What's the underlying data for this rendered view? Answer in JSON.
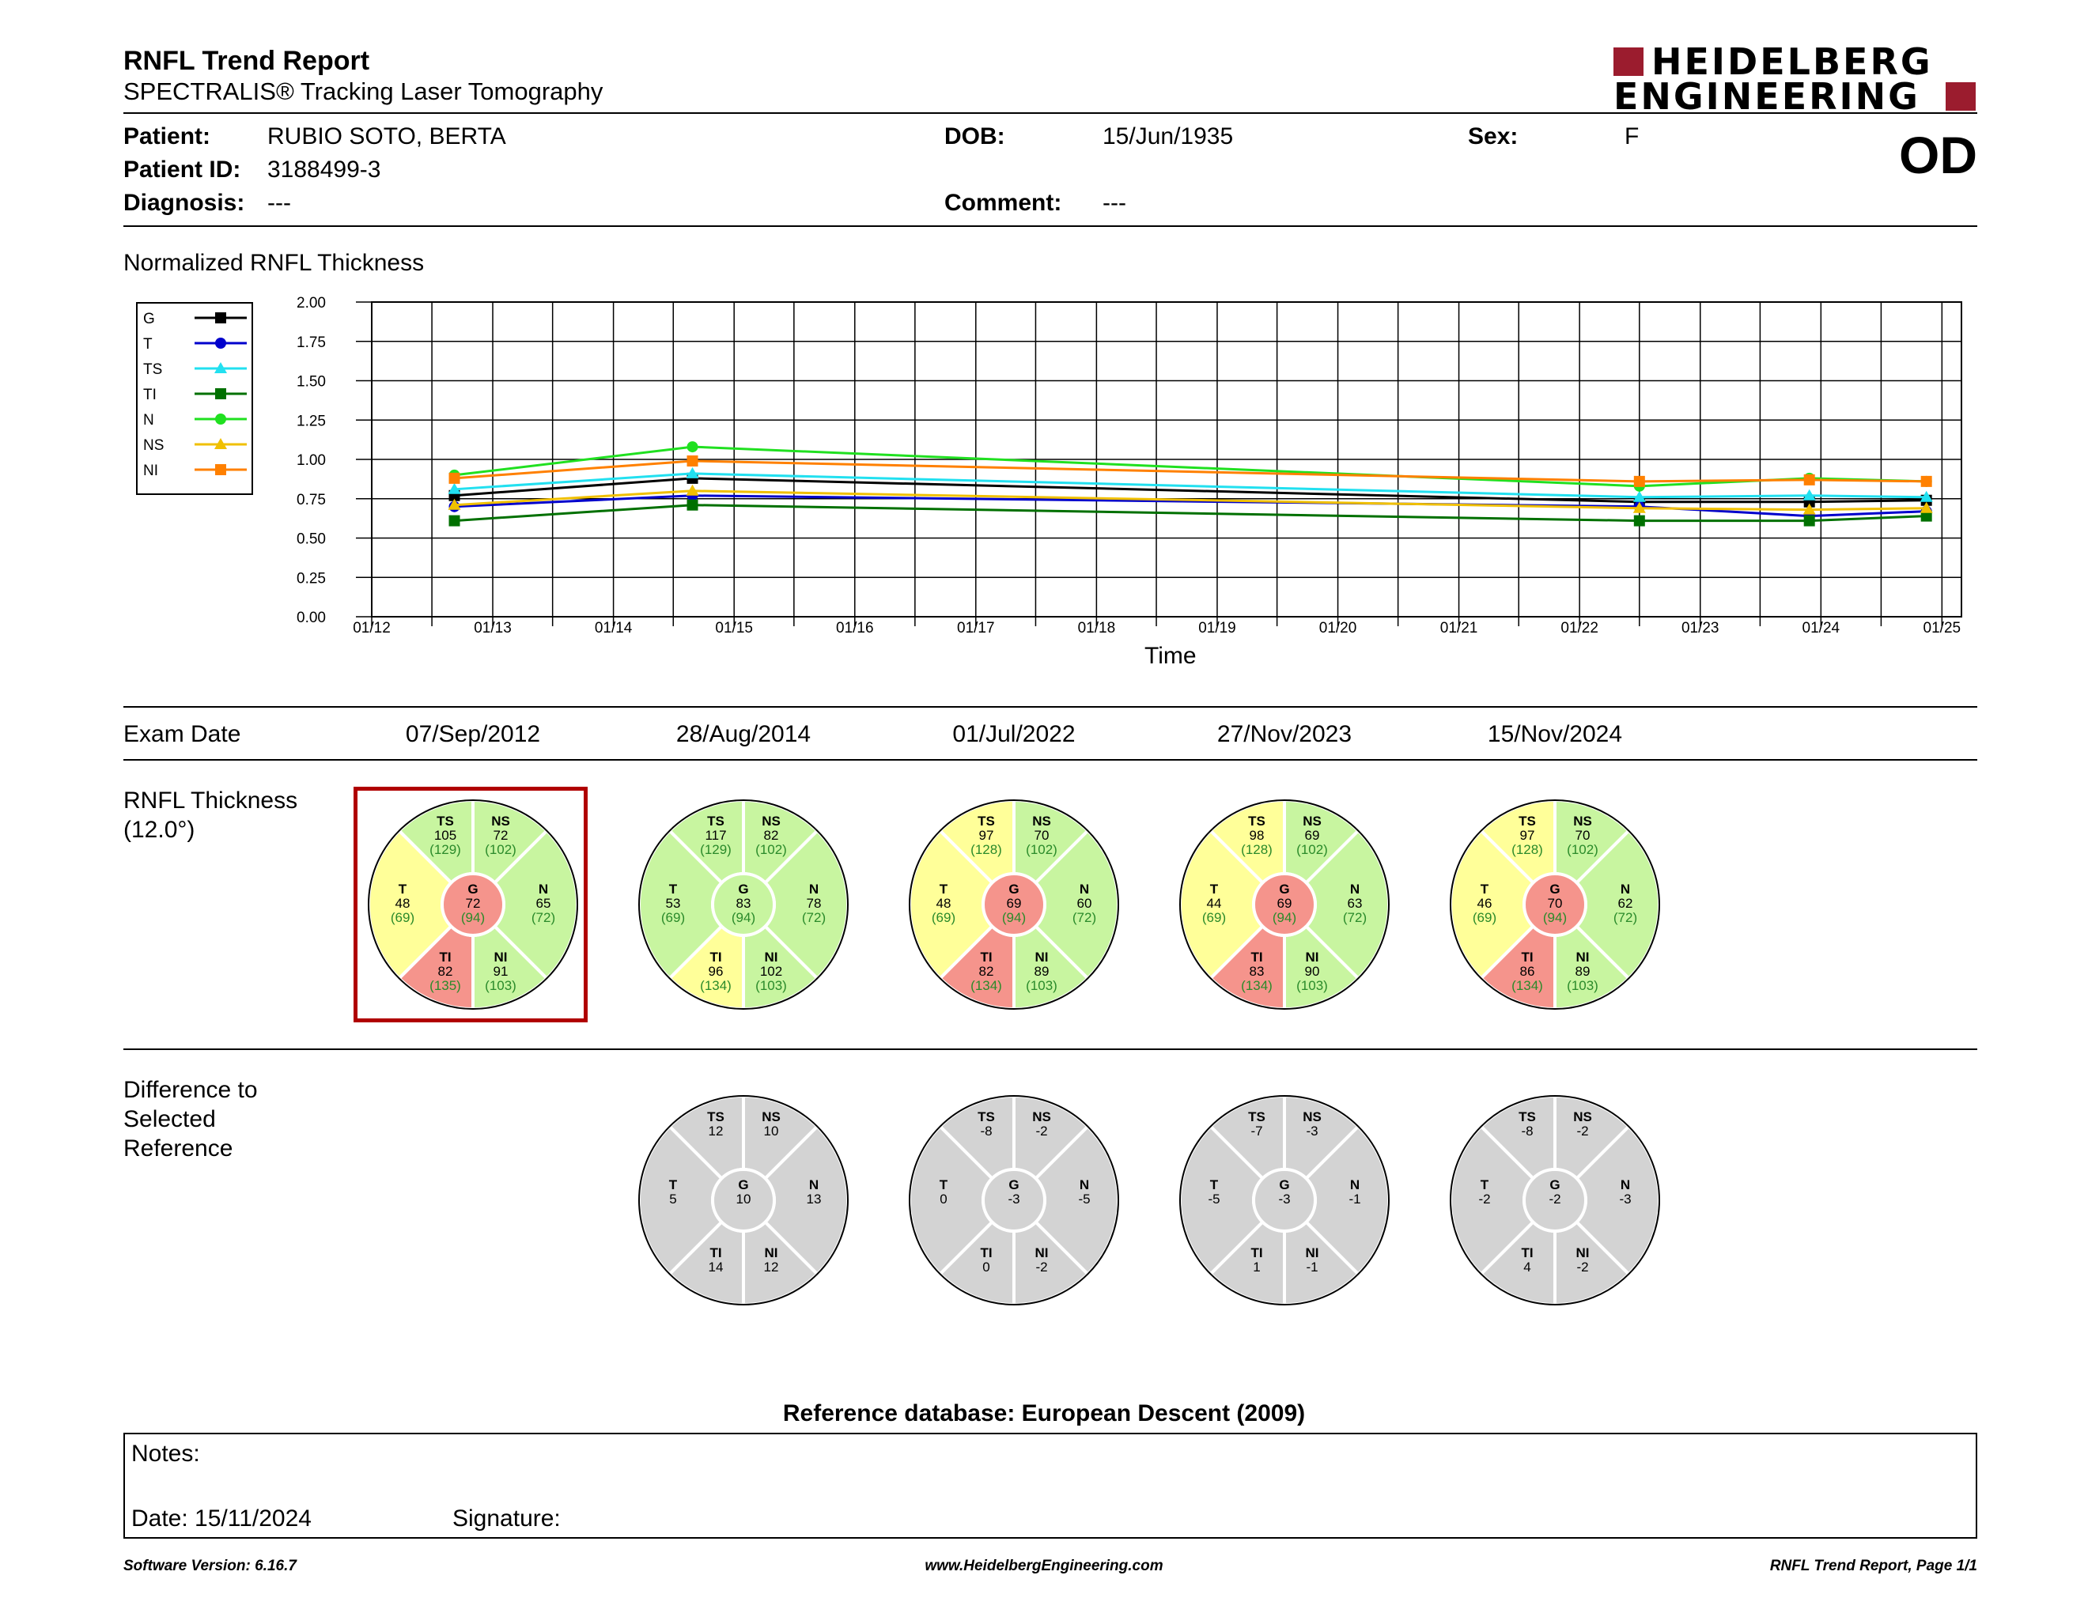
{
  "header": {
    "title": "RNFL Trend Report",
    "subtitle": "SPECTRALIS® Tracking Laser Tomography",
    "logo_line1": "HEIDELBERG",
    "logo_line2": "ENGINEERING",
    "eye": "OD"
  },
  "patient": {
    "patient_label": "Patient:",
    "patient_value": "RUBIO SOTO, BERTA",
    "id_label": "Patient ID:",
    "id_value": "3188499-3",
    "diagnosis_label": "Diagnosis:",
    "diagnosis_value": "---",
    "dob_label": "DOB:",
    "dob_value": "15/Jun/1935",
    "comment_label": "Comment:",
    "comment_value": "---",
    "sex_label": "Sex:",
    "sex_value": "F"
  },
  "chart_data": {
    "type": "line",
    "title": "Normalized RNFL Thickness",
    "xlabel": "Time",
    "ylabel": "",
    "ylim": [
      0,
      2
    ],
    "yticks": [
      "0.00",
      "0.25",
      "0.50",
      "0.75",
      "1.00",
      "1.25",
      "1.50",
      "1.75",
      "2.00"
    ],
    "xticks": [
      "01/12",
      "01/13",
      "01/14",
      "01/15",
      "01/16",
      "01/17",
      "01/18",
      "01/19",
      "01/20",
      "01/21",
      "01/22",
      "01/23",
      "01/24",
      "01/25"
    ],
    "x": [
      "07/Sep/2012",
      "28/Aug/2014",
      "01/Jul/2022",
      "27/Nov/2023",
      "15/Nov/2024"
    ],
    "grid": true,
    "legend_position": "left",
    "series": [
      {
        "name": "G",
        "color": "#000000",
        "marker": "square",
        "values": [
          0.77,
          0.88,
          0.73,
          0.73,
          0.74
        ]
      },
      {
        "name": "T",
        "color": "#0000cc",
        "marker": "circle",
        "values": [
          0.7,
          0.77,
          0.7,
          0.64,
          0.67
        ]
      },
      {
        "name": "TS",
        "color": "#22e0f0",
        "marker": "triangle",
        "values": [
          0.81,
          0.91,
          0.76,
          0.77,
          0.76
        ]
      },
      {
        "name": "TI",
        "color": "#007000",
        "marker": "square",
        "values": [
          0.61,
          0.71,
          0.61,
          0.61,
          0.64
        ]
      },
      {
        "name": "N",
        "color": "#20e020",
        "marker": "circle",
        "values": [
          0.9,
          1.08,
          0.83,
          0.88,
          0.86
        ]
      },
      {
        "name": "NS",
        "color": "#f0c000",
        "marker": "triangle",
        "values": [
          0.71,
          0.8,
          0.69,
          0.68,
          0.69
        ]
      },
      {
        "name": "NI",
        "color": "#ff8000",
        "marker": "square",
        "values": [
          0.88,
          0.99,
          0.86,
          0.87,
          0.86
        ]
      }
    ]
  },
  "exams": {
    "date_label": "Exam Date",
    "thickness_label_1": "RNFL Thickness",
    "thickness_label_2": "(12.0°)",
    "diff_label_1": "Difference to",
    "diff_label_2": "Selected",
    "diff_label_3": "Reference",
    "colors": {
      "green": "#c8f5a0",
      "yellow": "#ffff99",
      "red": "#f5948c",
      "gray": "#d3d3d3",
      "normal_text": "#2a8a2a"
    },
    "list": [
      {
        "date": "07/Sep/2012",
        "selected": true,
        "sectors": {
          "TS": {
            "v": "105",
            "n": "(129)",
            "c": "green"
          },
          "NS": {
            "v": "72",
            "n": "(102)",
            "c": "green"
          },
          "T": {
            "v": "48",
            "n": "(69)",
            "c": "yellow"
          },
          "N": {
            "v": "65",
            "n": "(72)",
            "c": "green"
          },
          "TI": {
            "v": "82",
            "n": "(135)",
            "c": "red"
          },
          "NI": {
            "v": "91",
            "n": "(103)",
            "c": "green"
          },
          "G": {
            "v": "72",
            "n": "(94)",
            "c": "red"
          }
        },
        "diff": null
      },
      {
        "date": "28/Aug/2014",
        "selected": false,
        "sectors": {
          "TS": {
            "v": "117",
            "n": "(129)",
            "c": "green"
          },
          "NS": {
            "v": "82",
            "n": "(102)",
            "c": "green"
          },
          "T": {
            "v": "53",
            "n": "(69)",
            "c": "green"
          },
          "N": {
            "v": "78",
            "n": "(72)",
            "c": "green"
          },
          "TI": {
            "v": "96",
            "n": "(134)",
            "c": "yellow"
          },
          "NI": {
            "v": "102",
            "n": "(103)",
            "c": "green"
          },
          "G": {
            "v": "83",
            "n": "(94)",
            "c": "green"
          }
        },
        "diff": {
          "TS": "12",
          "NS": "10",
          "T": "5",
          "N": "13",
          "TI": "14",
          "NI": "12",
          "G": "10"
        }
      },
      {
        "date": "01/Jul/2022",
        "selected": false,
        "sectors": {
          "TS": {
            "v": "97",
            "n": "(128)",
            "c": "yellow"
          },
          "NS": {
            "v": "70",
            "n": "(102)",
            "c": "green"
          },
          "T": {
            "v": "48",
            "n": "(69)",
            "c": "yellow"
          },
          "N": {
            "v": "60",
            "n": "(72)",
            "c": "green"
          },
          "TI": {
            "v": "82",
            "n": "(134)",
            "c": "red"
          },
          "NI": {
            "v": "89",
            "n": "(103)",
            "c": "green"
          },
          "G": {
            "v": "69",
            "n": "(94)",
            "c": "red"
          }
        },
        "diff": {
          "TS": "-8",
          "NS": "-2",
          "T": "0",
          "N": "-5",
          "TI": "0",
          "NI": "-2",
          "G": "-3"
        }
      },
      {
        "date": "27/Nov/2023",
        "selected": false,
        "sectors": {
          "TS": {
            "v": "98",
            "n": "(128)",
            "c": "yellow"
          },
          "NS": {
            "v": "69",
            "n": "(102)",
            "c": "green"
          },
          "T": {
            "v": "44",
            "n": "(69)",
            "c": "yellow"
          },
          "N": {
            "v": "63",
            "n": "(72)",
            "c": "green"
          },
          "TI": {
            "v": "83",
            "n": "(134)",
            "c": "red"
          },
          "NI": {
            "v": "90",
            "n": "(103)",
            "c": "green"
          },
          "G": {
            "v": "69",
            "n": "(94)",
            "c": "red"
          }
        },
        "diff": {
          "TS": "-7",
          "NS": "-3",
          "T": "-5",
          "N": "-1",
          "TI": "1",
          "NI": "-1",
          "G": "-3"
        }
      },
      {
        "date": "15/Nov/2024",
        "selected": false,
        "sectors": {
          "TS": {
            "v": "97",
            "n": "(128)",
            "c": "yellow"
          },
          "NS": {
            "v": "70",
            "n": "(102)",
            "c": "green"
          },
          "T": {
            "v": "46",
            "n": "(69)",
            "c": "yellow"
          },
          "N": {
            "v": "62",
            "n": "(72)",
            "c": "green"
          },
          "TI": {
            "v": "86",
            "n": "(134)",
            "c": "red"
          },
          "NI": {
            "v": "89",
            "n": "(103)",
            "c": "green"
          },
          "G": {
            "v": "70",
            "n": "(94)",
            "c": "red"
          }
        },
        "diff": {
          "TS": "-8",
          "NS": "-2",
          "T": "-2",
          "N": "-3",
          "TI": "4",
          "NI": "-2",
          "G": "-2"
        }
      }
    ]
  },
  "reference_db": "Reference database: European Descent (2009)",
  "notes": {
    "notes_label": "Notes:",
    "date_text": "Date: 15/11/2024",
    "signature_label": "Signature:"
  },
  "footer": {
    "version": "Software Version: 6.16.7",
    "website": "www.HeidelbergEngineering.com",
    "page": "RNFL Trend Report, Page 1/1"
  }
}
